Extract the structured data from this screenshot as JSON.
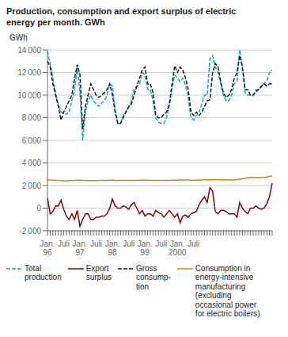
{
  "chart_data": {
    "type": "line",
    "title": "Production, consumption and export surplus of electric\nenergy per month. GWh",
    "ylabel": "GWh",
    "categories": [
      "Jan.\n96",
      null,
      null,
      null,
      null,
      null,
      "Juli",
      null,
      null,
      null,
      null,
      null,
      "Jan.\n97",
      null,
      null,
      null,
      null,
      null,
      "Juli",
      null,
      null,
      null,
      null,
      null,
      "Jan.\n98",
      null,
      null,
      null,
      null,
      null,
      "Juli",
      null,
      null,
      null,
      null,
      null,
      "Jan.\n99",
      null,
      null,
      null,
      null,
      null,
      "Juli",
      null,
      null,
      null,
      null,
      null,
      "Jan.\n2000",
      null,
      null,
      null,
      null,
      null,
      "Juli",
      null,
      null,
      null,
      null,
      null,
      null,
      null,
      null,
      null,
      null,
      null,
      null,
      null,
      null,
      null,
      null,
      null,
      null,
      null,
      null,
      null,
      null,
      null,
      null,
      null,
      null,
      null,
      null,
      null
    ],
    "series": [
      {
        "name": "Total\nproduction",
        "color": "#00b0c8",
        "line_style": "dashed",
        "values": [
          13900,
          12800,
          11500,
          10200,
          9200,
          8500,
          8400,
          8300,
          8500,
          9500,
          10500,
          12500,
          10200,
          6000,
          8500,
          9500,
          10000,
          9500,
          9200,
          9000,
          9300,
          9500,
          10000,
          11000,
          10800,
          8700,
          7500,
          7500,
          8200,
          8600,
          8900,
          9500,
          10500,
          10800,
          11000,
          12000,
          11800,
          10500,
          10500,
          9500,
          8000,
          7600,
          7500,
          7500,
          8000,
          9000,
          10500,
          11800,
          11500,
          11200,
          11500,
          10900,
          9700,
          8000,
          7800,
          8200,
          8500,
          9200,
          10000,
          10000,
          13200,
          13500,
          12500,
          12000,
          11000,
          10000,
          9500,
          9500,
          10000,
          11000,
          11200,
          14000,
          12500,
          10200,
          10000,
          10000,
          10000,
          10500,
          10500,
          10700,
          11000,
          11200,
          12000,
          12200
        ]
      },
      {
        "name": "Export\nsurplus",
        "color": "#8b0000",
        "line_style": "solid",
        "values": [
          900,
          -500,
          -300,
          200,
          200,
          700,
          -100,
          -700,
          -1000,
          -500,
          -1000,
          -200,
          -1600,
          -1000,
          -500,
          -500,
          -1000,
          -1000,
          -800,
          -800,
          -700,
          -700,
          -500,
          0,
          800,
          200,
          0,
          0,
          200,
          100,
          -100,
          300,
          500,
          0,
          -500,
          -200,
          -700,
          -500,
          -500,
          -700,
          -200,
          -400,
          -500,
          -800,
          -500,
          -200,
          -500,
          -800,
          -500,
          -1300,
          -700,
          -600,
          -800,
          -500,
          -400,
          -300,
          300,
          700,
          1000,
          500,
          1800,
          1500,
          -300,
          -500,
          -200,
          -200,
          -300,
          -500,
          -500,
          -500,
          -800,
          500,
          0,
          -300,
          -500,
          0,
          0,
          200,
          0,
          -100,
          0,
          400,
          1000,
          2200
        ]
      },
      {
        "name": "Gross\nconsump-\ntion",
        "color": "#1a1a1a",
        "line_style": "dashed",
        "values": [
          13000,
          12500,
          11000,
          10000,
          9000,
          7800,
          8500,
          9000,
          9500,
          10000,
          11500,
          12700,
          11800,
          7000,
          9000,
          10000,
          11000,
          10500,
          10000,
          9800,
          10000,
          10200,
          10500,
          11000,
          10000,
          8500,
          7500,
          7500,
          8000,
          8500,
          9000,
          9200,
          10000,
          10800,
          11500,
          12200,
          12500,
          11000,
          11000,
          10200,
          8200,
          8000,
          8000,
          8300,
          8500,
          9200,
          11000,
          12600,
          12000,
          12500,
          12200,
          11500,
          10500,
          8500,
          8200,
          8500,
          8200,
          8500,
          9000,
          9500,
          9600,
          12000,
          12800,
          12500,
          11200,
          10200,
          9800,
          10000,
          10500,
          11500,
          12000,
          13500,
          12500,
          10500,
          10500,
          10000,
          10000,
          10300,
          10500,
          10800,
          11000,
          10800,
          11000,
          11000
        ]
      },
      {
        "name": "Consumption in\nenergy-intensive\nmanufacturing\n(excluding\noccasional power\nfor electric boilers)",
        "color": "#e87c00",
        "line_style": "solid",
        "values": [
          2500,
          2500,
          2480,
          2450,
          2450,
          2430,
          2420,
          2420,
          2430,
          2440,
          2450,
          2470,
          2470,
          2460,
          2450,
          2440,
          2440,
          2440,
          2440,
          2450,
          2450,
          2460,
          2460,
          2470,
          2470,
          2460,
          2450,
          2450,
          2450,
          2450,
          2450,
          2450,
          2450,
          2460,
          2470,
          2480,
          2480,
          2470,
          2460,
          2460,
          2450,
          2450,
          2450,
          2450,
          2450,
          2460,
          2470,
          2480,
          2480,
          2490,
          2500,
          2500,
          2490,
          2480,
          2480,
          2480,
          2480,
          2490,
          2500,
          2510,
          2510,
          2520,
          2530,
          2530,
          2520,
          2510,
          2500,
          2500,
          2500,
          2510,
          2520,
          2560,
          2600,
          2650,
          2700,
          2720,
          2720,
          2720,
          2720,
          2720,
          2730,
          2750,
          2800,
          2850
        ]
      }
    ],
    "ylim": [
      -2000,
      14000
    ],
    "yticks": [
      {
        "value": -2000,
        "label": "-2 000"
      },
      0,
      {
        "value": 2000,
        "label": "2 000"
      },
      {
        "value": 4000,
        "label": "4 000"
      },
      {
        "value": 6000,
        "label": "6 000"
      },
      {
        "value": 8000,
        "label": "8 000"
      },
      {
        "value": 10000,
        "label": "10 000"
      },
      {
        "value": 12000,
        "label": "12 000"
      },
      {
        "value": 14000,
        "label": "14 000"
      }
    ],
    "grid": true,
    "legend": "bottom"
  }
}
